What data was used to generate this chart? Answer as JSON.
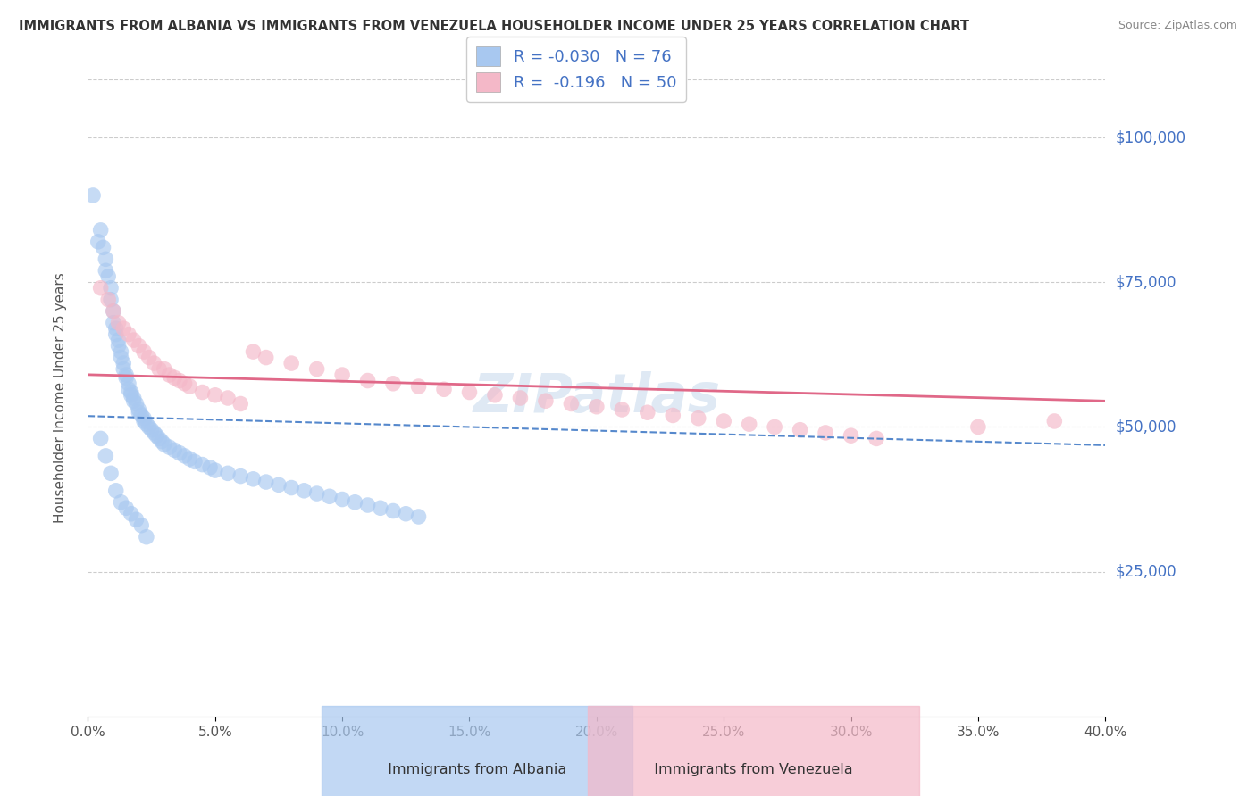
{
  "title": "IMMIGRANTS FROM ALBANIA VS IMMIGRANTS FROM VENEZUELA HOUSEHOLDER INCOME UNDER 25 YEARS CORRELATION CHART",
  "source": "Source: ZipAtlas.com",
  "ylabel": "Householder Income Under 25 years",
  "xlim": [
    0.0,
    0.4
  ],
  "ylim": [
    0,
    110000
  ],
  "yticks": [
    25000,
    50000,
    75000,
    100000
  ],
  "ytick_labels": [
    "$25,000",
    "$50,000",
    "$75,000",
    "$100,000"
  ],
  "legend_r_albania": "-0.030",
  "legend_n_albania": "76",
  "legend_r_venezuela": "-0.196",
  "legend_n_venezuela": "50",
  "color_albania": "#a8c8f0",
  "color_venezuela": "#f4b8c8",
  "line_color_albania": "#5588cc",
  "line_color_venezuela": "#e06888",
  "watermark": "ZIPatlas",
  "albania_x": [
    0.002,
    0.004,
    0.005,
    0.006,
    0.007,
    0.007,
    0.008,
    0.009,
    0.009,
    0.01,
    0.01,
    0.011,
    0.011,
    0.012,
    0.012,
    0.013,
    0.013,
    0.014,
    0.014,
    0.015,
    0.015,
    0.016,
    0.016,
    0.017,
    0.017,
    0.018,
    0.018,
    0.019,
    0.02,
    0.02,
    0.021,
    0.022,
    0.022,
    0.023,
    0.024,
    0.025,
    0.026,
    0.027,
    0.028,
    0.029,
    0.03,
    0.032,
    0.034,
    0.036,
    0.038,
    0.04,
    0.042,
    0.045,
    0.048,
    0.05,
    0.055,
    0.06,
    0.065,
    0.07,
    0.075,
    0.08,
    0.085,
    0.09,
    0.095,
    0.1,
    0.105,
    0.11,
    0.115,
    0.12,
    0.125,
    0.13,
    0.005,
    0.007,
    0.009,
    0.011,
    0.013,
    0.015,
    0.017,
    0.019,
    0.021,
    0.023
  ],
  "albania_y": [
    90000,
    82000,
    84000,
    81000,
    79000,
    77000,
    76000,
    74000,
    72000,
    70000,
    68000,
    67000,
    66000,
    65000,
    64000,
    63000,
    62000,
    61000,
    60000,
    59000,
    58500,
    57500,
    56500,
    56000,
    55500,
    55000,
    54500,
    54000,
    53000,
    52500,
    52000,
    51500,
    51000,
    50500,
    50000,
    49500,
    49000,
    48500,
    48000,
    47500,
    47000,
    46500,
    46000,
    45500,
    45000,
    44500,
    44000,
    43500,
    43000,
    42500,
    42000,
    41500,
    41000,
    40500,
    40000,
    39500,
    39000,
    38500,
    38000,
    37500,
    37000,
    36500,
    36000,
    35500,
    35000,
    34500,
    48000,
    45000,
    42000,
    39000,
    37000,
    36000,
    35000,
    34000,
    33000,
    31000
  ],
  "venezuela_x": [
    0.005,
    0.008,
    0.01,
    0.012,
    0.014,
    0.016,
    0.018,
    0.02,
    0.022,
    0.024,
    0.026,
    0.028,
    0.03,
    0.032,
    0.034,
    0.036,
    0.038,
    0.04,
    0.045,
    0.05,
    0.055,
    0.06,
    0.065,
    0.07,
    0.08,
    0.09,
    0.1,
    0.11,
    0.12,
    0.13,
    0.14,
    0.15,
    0.16,
    0.17,
    0.18,
    0.19,
    0.2,
    0.21,
    0.22,
    0.23,
    0.24,
    0.25,
    0.26,
    0.27,
    0.28,
    0.29,
    0.3,
    0.31,
    0.35,
    0.38
  ],
  "venezuela_y": [
    74000,
    72000,
    70000,
    68000,
    67000,
    66000,
    65000,
    64000,
    63000,
    62000,
    61000,
    60000,
    60000,
    59000,
    58500,
    58000,
    57500,
    57000,
    56000,
    55500,
    55000,
    54000,
    63000,
    62000,
    61000,
    60000,
    59000,
    58000,
    57500,
    57000,
    56500,
    56000,
    55500,
    55000,
    54500,
    54000,
    53500,
    53000,
    52500,
    52000,
    51500,
    51000,
    50500,
    50000,
    49500,
    49000,
    48500,
    48000,
    50000,
    51000
  ]
}
